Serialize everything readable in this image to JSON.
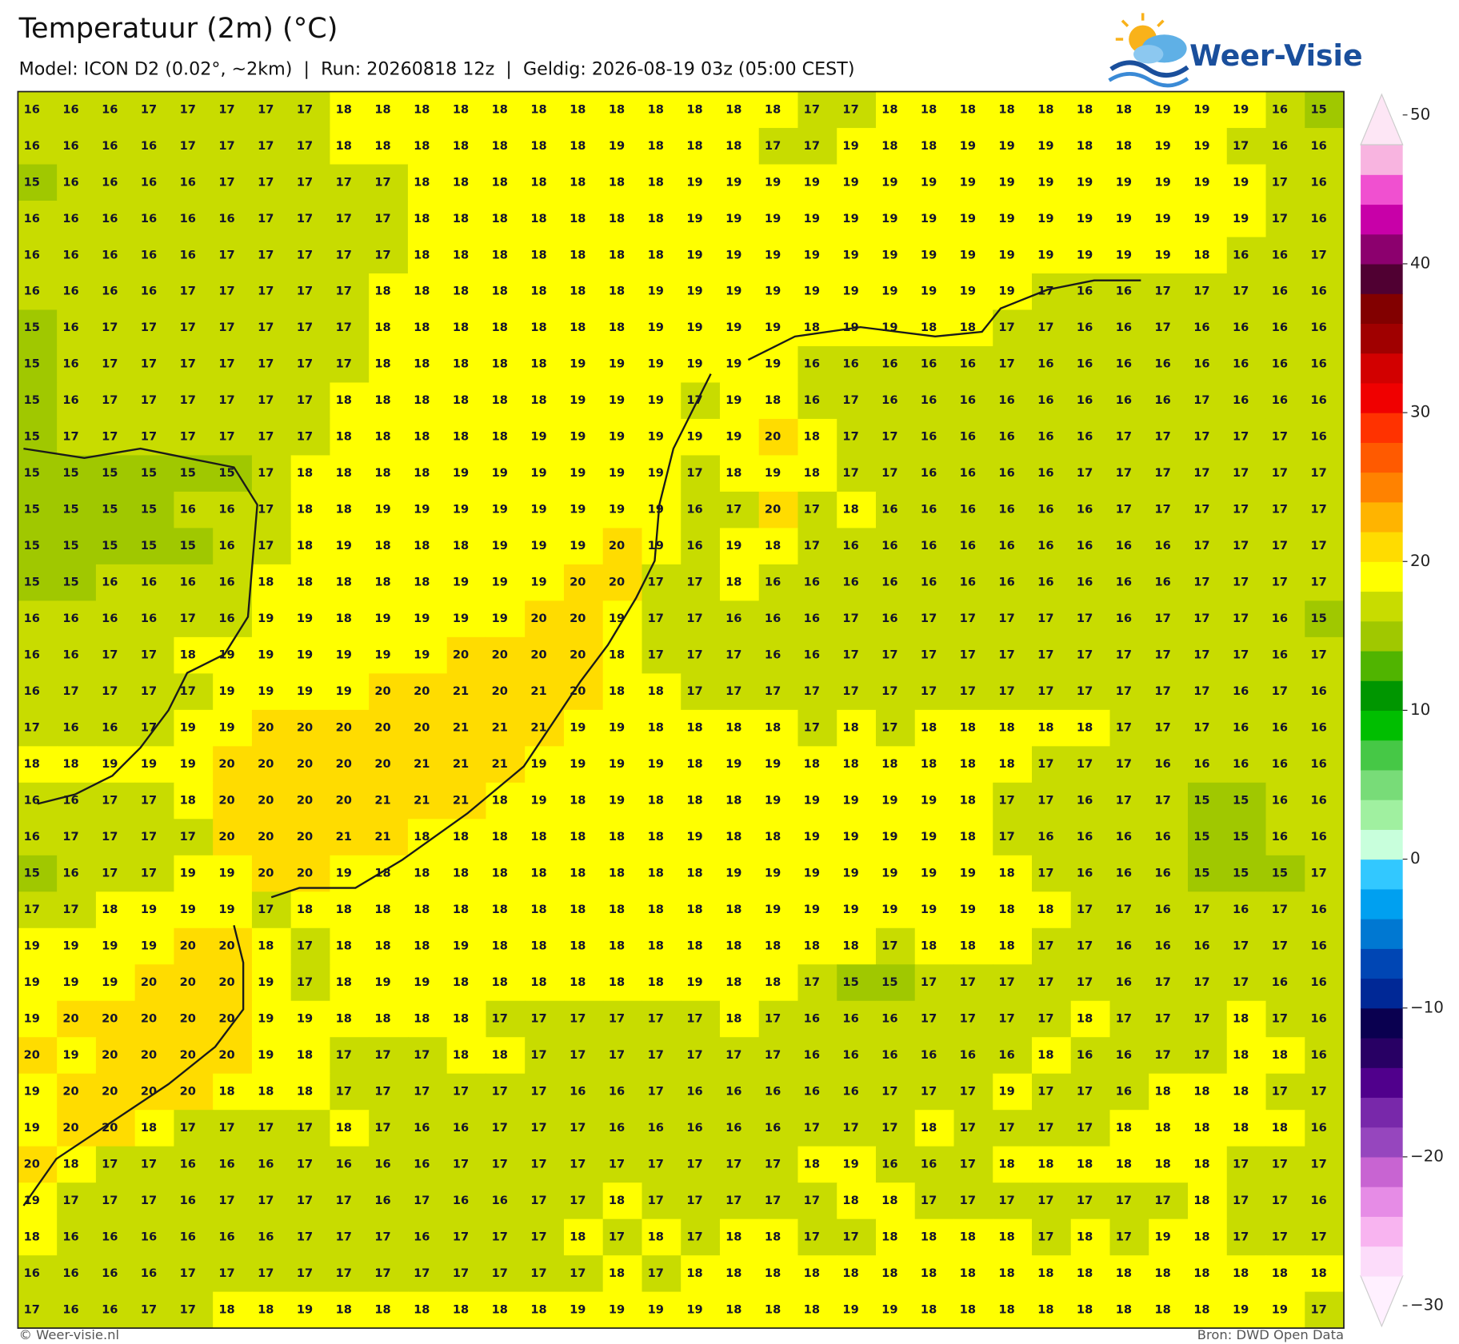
{
  "header": {
    "title": "Temperatuur (2m) (°C)",
    "subtitle": "Model: ICON D2 (0.02°, ~2km)  |  Run: 20260818 12z  |  Geldig: 2026-08-19 03z (05:00 CEST)"
  },
  "logo": {
    "text": "Weer-Visie"
  },
  "grid": {
    "values": [
      [
        16,
        16,
        16,
        17,
        17,
        17,
        17,
        17,
        18,
        18,
        18,
        18,
        18,
        18,
        18,
        18,
        18,
        18,
        18,
        18,
        17,
        17,
        18,
        18,
        18,
        18,
        18,
        18,
        18,
        19,
        19,
        19,
        16,
        15
      ],
      [
        16,
        16,
        16,
        16,
        17,
        17,
        17,
        17,
        18,
        18,
        18,
        18,
        18,
        18,
        18,
        19,
        18,
        18,
        18,
        17,
        17,
        19,
        18,
        18,
        19,
        19,
        19,
        18,
        18,
        19,
        19,
        17,
        16,
        16
      ],
      [
        15,
        16,
        16,
        16,
        16,
        17,
        17,
        17,
        17,
        17,
        18,
        18,
        18,
        18,
        18,
        18,
        18,
        19,
        19,
        19,
        19,
        19,
        19,
        19,
        19,
        19,
        19,
        19,
        19,
        19,
        19,
        19,
        17,
        16
      ],
      [
        16,
        16,
        16,
        16,
        16,
        16,
        17,
        17,
        17,
        17,
        18,
        18,
        18,
        18,
        18,
        18,
        18,
        19,
        19,
        19,
        19,
        19,
        19,
        19,
        19,
        19,
        19,
        19,
        19,
        19,
        19,
        19,
        17,
        16
      ],
      [
        16,
        16,
        16,
        16,
        16,
        17,
        17,
        17,
        17,
        17,
        18,
        18,
        18,
        18,
        18,
        18,
        18,
        19,
        19,
        19,
        19,
        19,
        19,
        19,
        19,
        19,
        19,
        19,
        19,
        19,
        18,
        16,
        16,
        17
      ],
      [
        16,
        16,
        16,
        16,
        17,
        17,
        17,
        17,
        17,
        18,
        18,
        18,
        18,
        18,
        18,
        18,
        19,
        19,
        19,
        19,
        19,
        19,
        19,
        19,
        19,
        19,
        17,
        16,
        16,
        17,
        17,
        17,
        16,
        16
      ],
      [
        15,
        16,
        17,
        17,
        17,
        17,
        17,
        17,
        17,
        18,
        18,
        18,
        18,
        18,
        18,
        18,
        19,
        19,
        19,
        19,
        18,
        19,
        19,
        18,
        18,
        17,
        17,
        16,
        16,
        17,
        16,
        16,
        16,
        16
      ],
      [
        15,
        16,
        17,
        17,
        17,
        17,
        17,
        17,
        17,
        18,
        18,
        18,
        18,
        18,
        19,
        19,
        19,
        19,
        19,
        19,
        16,
        16,
        16,
        16,
        16,
        17,
        16,
        16,
        16,
        16,
        16,
        16,
        16,
        16
      ],
      [
        15,
        16,
        17,
        17,
        17,
        17,
        17,
        17,
        18,
        18,
        18,
        18,
        18,
        18,
        19,
        19,
        19,
        17,
        19,
        18,
        16,
        17,
        16,
        16,
        16,
        16,
        16,
        16,
        16,
        16,
        17,
        16,
        16,
        16
      ],
      [
        15,
        17,
        17,
        17,
        17,
        17,
        17,
        17,
        18,
        18,
        18,
        18,
        18,
        19,
        19,
        19,
        19,
        19,
        19,
        20,
        18,
        17,
        17,
        16,
        16,
        16,
        16,
        16,
        17,
        17,
        17,
        17,
        17,
        16
      ],
      [
        15,
        15,
        15,
        15,
        15,
        15,
        17,
        18,
        18,
        18,
        18,
        19,
        19,
        19,
        19,
        19,
        19,
        17,
        18,
        19,
        18,
        17,
        17,
        16,
        16,
        16,
        16,
        17,
        17,
        17,
        17,
        17,
        17,
        17
      ],
      [
        15,
        15,
        15,
        15,
        16,
        16,
        17,
        18,
        18,
        19,
        19,
        19,
        19,
        19,
        19,
        19,
        19,
        16,
        17,
        20,
        17,
        18,
        16,
        16,
        16,
        16,
        16,
        16,
        17,
        17,
        17,
        17,
        17,
        17
      ],
      [
        15,
        15,
        15,
        15,
        15,
        16,
        17,
        18,
        19,
        18,
        18,
        18,
        19,
        19,
        19,
        20,
        19,
        16,
        19,
        18,
        17,
        16,
        16,
        16,
        16,
        16,
        16,
        16,
        16,
        16,
        17,
        17,
        17,
        17
      ],
      [
        15,
        15,
        16,
        16,
        16,
        16,
        18,
        18,
        18,
        18,
        18,
        19,
        19,
        19,
        20,
        20,
        17,
        17,
        18,
        16,
        16,
        16,
        16,
        16,
        16,
        16,
        16,
        16,
        16,
        16,
        17,
        17,
        17,
        17
      ],
      [
        16,
        16,
        16,
        16,
        17,
        16,
        19,
        19,
        18,
        19,
        19,
        19,
        19,
        20,
        20,
        19,
        17,
        17,
        16,
        16,
        16,
        17,
        16,
        17,
        17,
        17,
        17,
        17,
        16,
        17,
        17,
        17,
        16,
        15
      ],
      [
        16,
        16,
        17,
        17,
        18,
        19,
        19,
        19,
        19,
        19,
        19,
        20,
        20,
        20,
        20,
        18,
        17,
        17,
        17,
        16,
        16,
        17,
        17,
        17,
        17,
        17,
        17,
        17,
        17,
        17,
        17,
        17,
        16,
        17
      ],
      [
        16,
        17,
        17,
        17,
        17,
        19,
        19,
        19,
        19,
        20,
        20,
        21,
        20,
        21,
        20,
        18,
        18,
        17,
        17,
        17,
        17,
        17,
        17,
        17,
        17,
        17,
        17,
        17,
        17,
        17,
        17,
        16,
        17,
        16
      ],
      [
        17,
        16,
        16,
        17,
        19,
        19,
        20,
        20,
        20,
        20,
        20,
        21,
        21,
        21,
        19,
        19,
        18,
        18,
        18,
        18,
        17,
        18,
        17,
        18,
        18,
        18,
        18,
        18,
        17,
        17,
        17,
        16,
        16,
        16
      ],
      [
        18,
        18,
        19,
        19,
        19,
        20,
        20,
        20,
        20,
        20,
        21,
        21,
        21,
        19,
        19,
        19,
        19,
        18,
        19,
        19,
        18,
        18,
        18,
        18,
        18,
        18,
        17,
        17,
        17,
        16,
        16,
        16,
        16,
        16
      ],
      [
        16,
        16,
        17,
        17,
        18,
        20,
        20,
        20,
        20,
        21,
        21,
        21,
        18,
        19,
        18,
        19,
        18,
        18,
        18,
        19,
        19,
        19,
        19,
        19,
        18,
        17,
        17,
        16,
        17,
        17,
        15,
        15,
        16,
        16
      ],
      [
        16,
        17,
        17,
        17,
        17,
        20,
        20,
        20,
        21,
        21,
        18,
        18,
        18,
        18,
        18,
        18,
        18,
        19,
        18,
        18,
        19,
        19,
        19,
        19,
        18,
        17,
        16,
        16,
        16,
        16,
        15,
        15,
        16,
        16
      ],
      [
        15,
        16,
        17,
        17,
        19,
        19,
        20,
        20,
        19,
        18,
        18,
        18,
        18,
        18,
        18,
        18,
        18,
        18,
        19,
        19,
        19,
        19,
        19,
        19,
        19,
        18,
        17,
        16,
        16,
        16,
        15,
        15,
        15,
        17
      ],
      [
        17,
        17,
        18,
        19,
        19,
        19,
        17,
        18,
        18,
        18,
        18,
        18,
        18,
        18,
        18,
        18,
        18,
        18,
        18,
        19,
        19,
        19,
        19,
        19,
        19,
        18,
        18,
        17,
        17,
        16,
        17,
        16,
        17,
        16
      ],
      [
        19,
        19,
        19,
        19,
        20,
        20,
        18,
        17,
        18,
        18,
        18,
        19,
        18,
        18,
        18,
        18,
        18,
        18,
        18,
        18,
        18,
        18,
        17,
        18,
        18,
        18,
        17,
        17,
        16,
        16,
        16,
        17,
        17,
        16
      ],
      [
        19,
        19,
        19,
        20,
        20,
        20,
        19,
        17,
        18,
        19,
        19,
        18,
        18,
        18,
        18,
        18,
        18,
        19,
        18,
        18,
        17,
        15,
        15,
        17,
        17,
        17,
        17,
        17,
        16,
        17,
        17,
        17,
        16,
        16
      ],
      [
        19,
        20,
        20,
        20,
        20,
        20,
        19,
        19,
        18,
        18,
        18,
        18,
        17,
        17,
        17,
        17,
        17,
        17,
        18,
        17,
        16,
        16,
        16,
        17,
        17,
        17,
        17,
        18,
        17,
        17,
        17,
        18,
        17,
        16
      ],
      [
        20,
        19,
        20,
        20,
        20,
        20,
        19,
        18,
        17,
        17,
        17,
        18,
        18,
        17,
        17,
        17,
        17,
        17,
        17,
        17,
        16,
        16,
        16,
        16,
        16,
        16,
        18,
        16,
        16,
        17,
        17,
        18,
        18,
        16
      ],
      [
        19,
        20,
        20,
        20,
        20,
        18,
        18,
        18,
        17,
        17,
        17,
        17,
        17,
        17,
        16,
        16,
        17,
        16,
        16,
        16,
        16,
        16,
        17,
        17,
        17,
        19,
        17,
        17,
        16,
        18,
        18,
        18,
        17,
        17
      ],
      [
        19,
        20,
        20,
        18,
        17,
        17,
        17,
        17,
        18,
        17,
        16,
        16,
        17,
        17,
        17,
        16,
        16,
        16,
        16,
        16,
        17,
        17,
        17,
        18,
        17,
        17,
        17,
        17,
        18,
        18,
        18,
        18,
        18,
        16
      ],
      [
        20,
        18,
        17,
        17,
        16,
        16,
        16,
        17,
        16,
        16,
        16,
        17,
        17,
        17,
        17,
        17,
        17,
        17,
        17,
        17,
        18,
        19,
        16,
        16,
        17,
        18,
        18,
        18,
        18,
        18,
        18,
        17,
        17,
        17
      ],
      [
        19,
        17,
        17,
        17,
        16,
        17,
        17,
        17,
        17,
        16,
        17,
        16,
        16,
        17,
        17,
        18,
        17,
        17,
        17,
        17,
        17,
        18,
        18,
        17,
        17,
        17,
        17,
        17,
        17,
        17,
        18,
        17,
        17,
        16
      ],
      [
        18,
        16,
        16,
        16,
        16,
        16,
        16,
        17,
        17,
        17,
        16,
        17,
        17,
        17,
        18,
        17,
        18,
        17,
        18,
        18,
        17,
        17,
        18,
        18,
        18,
        18,
        17,
        18,
        17,
        19,
        18,
        17,
        17,
        17
      ],
      [
        16,
        16,
        16,
        16,
        17,
        17,
        17,
        17,
        17,
        17,
        17,
        17,
        17,
        17,
        17,
        18,
        17,
        18,
        18,
        18,
        18,
        18,
        18,
        18,
        18,
        18,
        18,
        18,
        18,
        18,
        18,
        18,
        18,
        18
      ],
      [
        17,
        16,
        16,
        17,
        17,
        18,
        18,
        19,
        18,
        18,
        18,
        18,
        18,
        18,
        19,
        19,
        19,
        19,
        18,
        18,
        18,
        19,
        19,
        18,
        18,
        18,
        18,
        18,
        18,
        18,
        18,
        19,
        19,
        17
      ]
    ]
  },
  "colorbar": {
    "lim": [
      -30,
      50
    ],
    "ticks": [
      50,
      40,
      30,
      20,
      10,
      0,
      {
        "value": -10,
        "label": "−10"
      },
      {
        "value": -20,
        "label": "−20"
      },
      {
        "value": -30,
        "label": "−30"
      }
    ],
    "colors": [
      "#fff0ff",
      "#fcdcfa",
      "#f8b4f0",
      "#e68ce6",
      "#c864d2",
      "#9646be",
      "#7828aa",
      "#50008c",
      "#280064",
      "#0a0050",
      "#002896",
      "#0046b4",
      "#0078d2",
      "#00a0f0",
      "#32c8ff",
      "#c8ffdc",
      "#a0f0a0",
      "#78dc78",
      "#46c846",
      "#00be00",
      "#009600",
      "#50b400",
      "#a0c800",
      "#c8dc00",
      "#ffff00",
      "#ffdc00",
      "#ffb400",
      "#ff8200",
      "#ff5a00",
      "#ff3200",
      "#f00000",
      "#d20000",
      "#a00000",
      "#820000",
      "#500032",
      "#8c006e",
      "#c800a8",
      "#f050d0",
      "#f8b4e0",
      "#fde6f5"
    ]
  },
  "footer": {
    "left": "© Weer-visie.nl",
    "right": "Bron: DWD Open Data"
  }
}
